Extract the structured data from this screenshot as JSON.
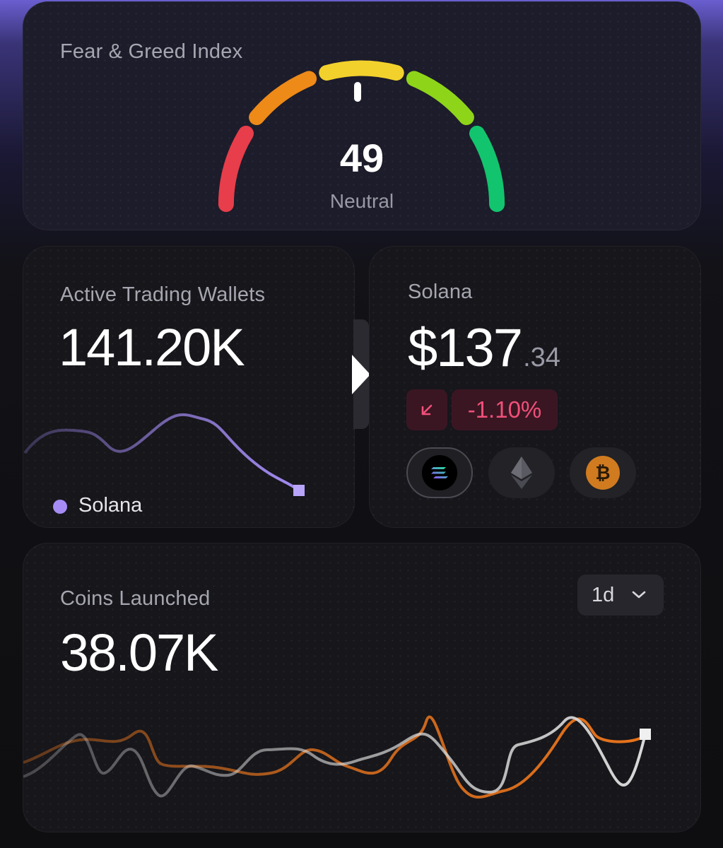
{
  "fear_greed": {
    "title": "Fear & Greed Index",
    "value": "49",
    "label": "Neutral",
    "segment_colors": [
      "#e83d4a",
      "#ee8a18",
      "#f2d12c",
      "#8ed51a",
      "#12c46e"
    ]
  },
  "wallets": {
    "title": "Active Trading Wallets",
    "value": "141.20K",
    "legend": "Solana",
    "line_color": "#a58cf5"
  },
  "solana": {
    "title": "Solana",
    "price_main": "$137",
    "price_decimal": ".34",
    "change": "-1.10%",
    "change_icon": "arrow-down-left-icon",
    "coins": [
      {
        "name": "solana-icon",
        "active": true
      },
      {
        "name": "ethereum-icon",
        "active": false
      },
      {
        "name": "bitcoin-icon",
        "active": false
      }
    ]
  },
  "coins_launched": {
    "title": "Coins Launched",
    "value": "38.07K",
    "range": "1d",
    "colors": {
      "primary": "#e8741c",
      "secondary": "#d9d9d9"
    }
  }
}
